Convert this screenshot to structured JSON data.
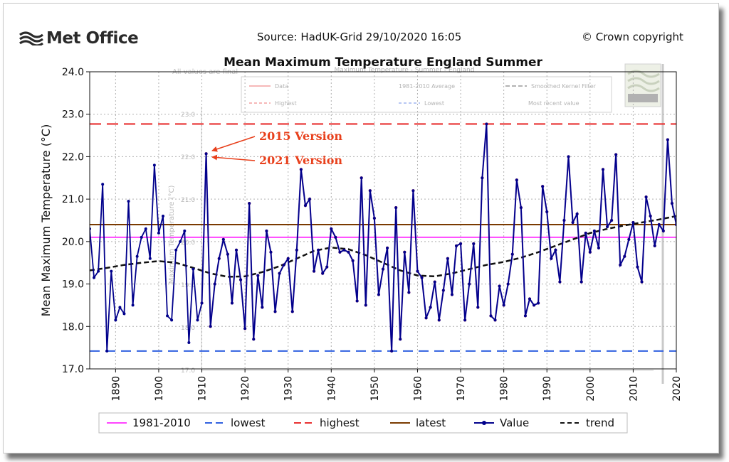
{
  "header": {
    "logo_text": "Met Office",
    "source": "Source: HadUK-Grid 29/10/2020 16:05",
    "copyright": "© Crown copyright"
  },
  "annotations": {
    "version_2015": "2015 Version",
    "version_2021": "2021 Version",
    "annotation_color": "#e8401c"
  },
  "ghost_overlay": {
    "top_left_note": "All values are final",
    "title": "Maximum Temperature - Summer - England",
    "legend_items": [
      "Data",
      "1981-2010 Average",
      "Smoothed Kernel Filter",
      "Highest",
      "Lowest",
      "Most recent value"
    ],
    "ytick_labels": [
      "23.0",
      "22.0",
      "21.0",
      "20.0",
      "19.0",
      "18.0",
      "17.0"
    ],
    "ylabel": "Maximum Temperature (°C)"
  },
  "colors": {
    "value": "#00008b",
    "overlay_data": "#e83030",
    "overlay_line": "#8060c0",
    "baseline": "#ff44ff",
    "lowest": "#3060e0",
    "highest": "#e83030",
    "latest": "#7a3a00",
    "trend": "#111111"
  },
  "chart_data": {
    "type": "line",
    "title": "Mean Maximum Temperature England Summer",
    "xlabel": "",
    "ylabel": "Mean Maximum Temperature (°C)",
    "xlim": [
      1884,
      2020
    ],
    "ylim": [
      17.0,
      24.0
    ],
    "xticks": [
      1890,
      1900,
      1910,
      1920,
      1930,
      1940,
      1950,
      1960,
      1970,
      1980,
      1990,
      2000,
      2010,
      2020
    ],
    "yticks": [
      "17.0",
      "18.0",
      "19.0",
      "20.0",
      "21.0",
      "22.0",
      "23.0",
      "24.0"
    ],
    "grid": true,
    "legend_position": "bottom",
    "legend": [
      "1981-2010",
      "lowest",
      "highest",
      "latest",
      "Value",
      "trend"
    ],
    "reference_lines": {
      "1981-2010": 20.1,
      "lowest": 17.42,
      "highest": 22.77,
      "latest": 20.4
    },
    "series": [
      {
        "name": "Value",
        "x": [
          1884,
          1885,
          1886,
          1887,
          1888,
          1889,
          1890,
          1891,
          1892,
          1893,
          1894,
          1895,
          1896,
          1897,
          1898,
          1899,
          1900,
          1901,
          1902,
          1903,
          1904,
          1905,
          1906,
          1907,
          1908,
          1909,
          1910,
          1911,
          1912,
          1913,
          1914,
          1915,
          1916,
          1917,
          1918,
          1919,
          1920,
          1921,
          1922,
          1923,
          1924,
          1925,
          1926,
          1927,
          1928,
          1929,
          1930,
          1931,
          1932,
          1933,
          1934,
          1935,
          1936,
          1937,
          1938,
          1939,
          1940,
          1941,
          1942,
          1943,
          1944,
          1945,
          1946,
          1947,
          1948,
          1949,
          1950,
          1951,
          1952,
          1953,
          1954,
          1955,
          1956,
          1957,
          1958,
          1959,
          1960,
          1961,
          1962,
          1963,
          1964,
          1965,
          1966,
          1967,
          1968,
          1969,
          1970,
          1971,
          1972,
          1973,
          1974,
          1975,
          1976,
          1977,
          1978,
          1979,
          1980,
          1981,
          1982,
          1983,
          1984,
          1985,
          1986,
          1987,
          1988,
          1989,
          1990,
          1991,
          1992,
          1993,
          1994,
          1995,
          1996,
          1997,
          1998,
          1999,
          2000,
          2001,
          2002,
          2003,
          2004,
          2005,
          2006,
          2007,
          2008,
          2009,
          2010,
          2011,
          2012,
          2013,
          2014,
          2015,
          2016,
          2017,
          2018,
          2019,
          2020
        ],
        "values": [
          20.3,
          19.15,
          19.3,
          21.35,
          17.42,
          19.3,
          18.15,
          18.45,
          18.3,
          20.95,
          18.5,
          19.65,
          20.1,
          20.3,
          19.6,
          21.8,
          20.2,
          20.6,
          18.25,
          18.15,
          19.8,
          20.0,
          20.25,
          17.62,
          19.35,
          18.15,
          18.55,
          22.07,
          18.0,
          19.0,
          19.6,
          20.05,
          19.7,
          18.55,
          19.8,
          19.1,
          17.95,
          20.9,
          17.7,
          19.2,
          18.45,
          20.25,
          19.75,
          18.35,
          19.25,
          19.45,
          19.6,
          18.35,
          19.8,
          21.7,
          20.85,
          21.0,
          19.3,
          19.8,
          19.25,
          19.4,
          20.3,
          20.1,
          19.75,
          19.8,
          19.75,
          19.55,
          18.6,
          21.5,
          18.5,
          21.2,
          20.55,
          18.75,
          19.35,
          19.85,
          17.42,
          20.8,
          17.7,
          19.75,
          18.8,
          21.2,
          19.3,
          19.15,
          18.2,
          18.45,
          19.05,
          18.15,
          18.85,
          19.6,
          18.75,
          19.9,
          19.95,
          18.15,
          19.0,
          19.95,
          18.45,
          21.5,
          22.77,
          18.25,
          18.15,
          18.95,
          18.5,
          19.0,
          19.7,
          21.45,
          20.8,
          18.25,
          18.65,
          18.5,
          18.55,
          21.3,
          20.7,
          19.6,
          19.8,
          19.05,
          20.5,
          22.0,
          20.45,
          20.65,
          19.05,
          20.2,
          19.75,
          20.25,
          19.85,
          21.7,
          20.35,
          20.5,
          22.05,
          19.45,
          19.65,
          20.05,
          20.45,
          19.4,
          19.05,
          21.05,
          20.6,
          19.9,
          20.4,
          20.25,
          22.4,
          20.9,
          20.4
        ]
      },
      {
        "name": "trend",
        "x": [
          1884,
          1888,
          1892,
          1896,
          1900,
          1904,
          1908,
          1912,
          1916,
          1920,
          1924,
          1928,
          1932,
          1936,
          1940,
          1944,
          1948,
          1952,
          1956,
          1960,
          1964,
          1968,
          1972,
          1976,
          1980,
          1984,
          1988,
          1992,
          1996,
          2000,
          2004,
          2008,
          2012,
          2016,
          2020
        ],
        "values": [
          19.32,
          19.38,
          19.45,
          19.5,
          19.54,
          19.5,
          19.38,
          19.25,
          19.17,
          19.18,
          19.28,
          19.42,
          19.6,
          19.78,
          19.86,
          19.82,
          19.68,
          19.5,
          19.32,
          19.2,
          19.18,
          19.25,
          19.35,
          19.45,
          19.52,
          19.62,
          19.75,
          19.9,
          20.05,
          20.2,
          20.3,
          20.38,
          20.45,
          20.52,
          20.6
        ]
      }
    ]
  }
}
